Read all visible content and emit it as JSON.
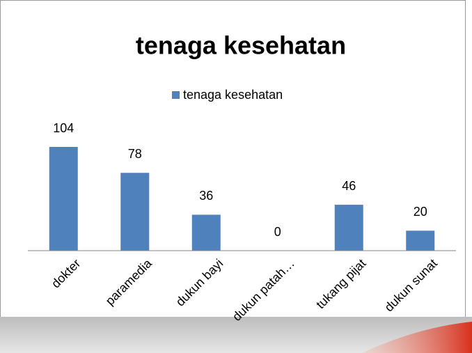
{
  "chart_data": {
    "type": "bar",
    "title": "tenaga kesehatan",
    "categories": [
      "dokter",
      "paramedia",
      "dukun bayi",
      "dukun patah…",
      "tukang pijat",
      "dukun sunat"
    ],
    "series": [
      {
        "name": "tenaga kesehatan",
        "color": "#4f81bd",
        "values": [
          104,
          78,
          36,
          0,
          46,
          20
        ]
      }
    ],
    "legend": "top"
  }
}
